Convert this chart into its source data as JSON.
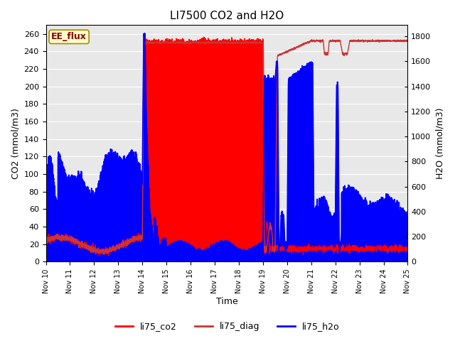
{
  "title": "LI7500 CO2 and H2O",
  "xlabel": "Time",
  "ylabel_left": "CO2 (mmol/m3)",
  "ylabel_right": "H2O (mmol/m3)",
  "ylim_left": [
    0,
    270
  ],
  "ylim_right": [
    0,
    1890
  ],
  "yticks_left": [
    0,
    20,
    40,
    60,
    80,
    100,
    120,
    140,
    160,
    180,
    200,
    220,
    240,
    260
  ],
  "yticks_right": [
    0,
    200,
    400,
    600,
    800,
    1000,
    1200,
    1400,
    1600,
    1800
  ],
  "xtick_labels": [
    "Nov 10",
    "Nov 11",
    "Nov 12",
    "Nov 13",
    "Nov 14",
    "Nov 15",
    "Nov 16",
    "Nov 17",
    "Nov 18",
    "Nov 19",
    "Nov 20",
    "Nov 21",
    "Nov 22",
    "Nov 23",
    "Nov 24",
    "Nov 25"
  ],
  "legend_label": "EE_flux",
  "plot_bg_color": "#e8e8e8",
  "grid_color": "white",
  "co2_color": "red",
  "diag_color": "#cc3333",
  "h2o_color": "blue",
  "fill_co2_color": "red",
  "fill_h2o_color": "blue",
  "title_fontsize": 11,
  "axis_fontsize": 9,
  "ratio": 7.0
}
